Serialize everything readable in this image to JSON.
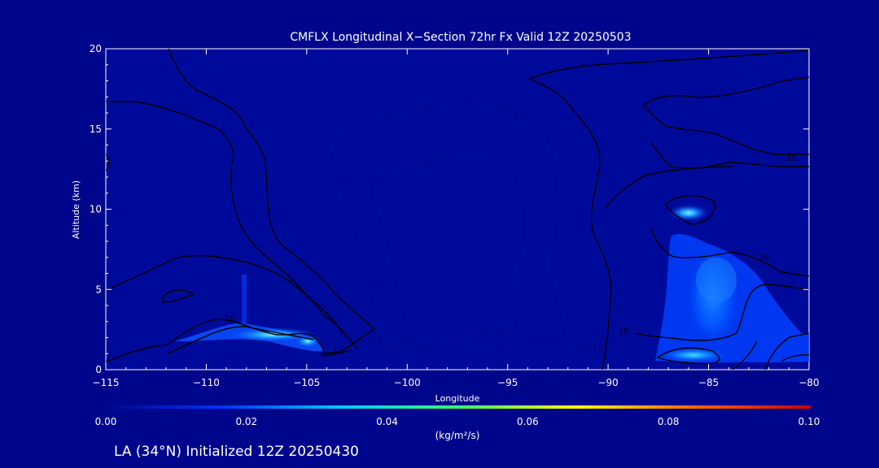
{
  "chart_data": {
    "type": "contour",
    "title": "CMFLX Longitudinal X−Section 72hr  Fx Valid 12Z 20250503",
    "xlabel": "Longitude",
    "ylabel": "Altitude (km)",
    "xlim": [
      -115,
      -80
    ],
    "ylim": [
      0,
      20
    ],
    "x_ticks": [
      -115,
      -110,
      -105,
      -100,
      -95,
      -90,
      -85,
      -80
    ],
    "x_tick_labels": [
      "−115",
      "−110",
      "−105",
      "−100",
      "−95",
      "−90",
      "−85",
      "−80"
    ],
    "y_ticks": [
      0,
      5,
      10,
      15,
      20
    ],
    "y_tick_labels": [
      "0",
      "5",
      "10",
      "15",
      "20"
    ],
    "colorbar": {
      "label": "(kg/m²/s)",
      "min": 0.0,
      "max": 0.1,
      "ticks": [
        0.0,
        0.02,
        0.04,
        0.06,
        0.08,
        0.1
      ],
      "tick_labels": [
        "0.00",
        "0.02",
        "0.04",
        "0.06",
        "0.08",
        "0.10"
      ],
      "colors": [
        "#00068c",
        "#0033ff",
        "#00ccff",
        "#33ff66",
        "#ffff00",
        "#ff6600",
        "#cc0000"
      ]
    },
    "contour_labels": [
      "10",
      "10",
      "10",
      "10",
      "−10"
    ],
    "filled_regions": [
      {
        "lon": -107,
        "alt": 2.2,
        "value": 0.035
      },
      {
        "lon": -85,
        "alt": 4.0,
        "value": 0.015
      },
      {
        "lon": -85.5,
        "alt": 9.8,
        "value": 0.025
      },
      {
        "lon": -85.5,
        "alt": 0.9,
        "value": 0.02
      }
    ]
  },
  "footer": "LA (34°N) Initialized 12Z 20250430",
  "colors": {
    "background": "#00068c",
    "plot_background": "#000a9a",
    "contour": "#000000",
    "text": "#ffffff"
  }
}
